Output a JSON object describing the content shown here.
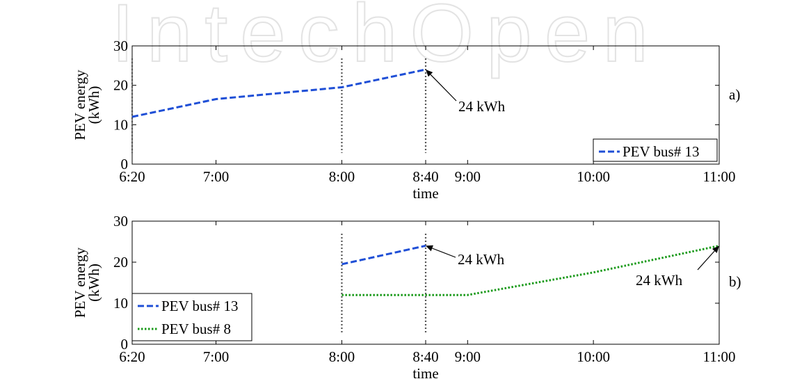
{
  "watermark": {
    "text": "IntechOpen",
    "color": "#e6e6e6"
  },
  "chart_data": [
    {
      "type": "line",
      "panel_label": "a)",
      "xlabel": "time",
      "ylabel": "PEV energy (kWh)",
      "ylabel_lines": [
        "PEV energy",
        "(kWh)"
      ],
      "ylim": [
        0,
        30
      ],
      "yticks": [
        0,
        10,
        20,
        30
      ],
      "xlim_minutes": [
        380,
        660
      ],
      "xticks": [
        {
          "label": "6:20",
          "minutes": 380
        },
        {
          "label": "7:00",
          "minutes": 420
        },
        {
          "label": "8:00",
          "minutes": 480
        },
        {
          "label": "8:40",
          "minutes": 520
        },
        {
          "label": "9:00",
          "minutes": 540
        },
        {
          "label": "10:00",
          "minutes": 600
        },
        {
          "label": "11:00",
          "minutes": 660
        }
      ],
      "grid": false,
      "legend_position": "bottom-right",
      "vlines_minutes": [
        380,
        480,
        520
      ],
      "series": [
        {
          "name": "PEV bus# 13",
          "style": "dashed",
          "color": "#1f4fd6",
          "x": [
            "6:20",
            "7:00",
            "8:00",
            "8:40"
          ],
          "x_minutes": [
            380,
            420,
            480,
            520
          ],
          "values": [
            12,
            16.5,
            19.5,
            24
          ]
        }
      ],
      "annotations": [
        {
          "text": "24 kWh",
          "x_minutes": 520,
          "y": 24
        }
      ]
    },
    {
      "type": "line",
      "panel_label": "b)",
      "xlabel": "time",
      "ylabel": "PEV energy (kWh)",
      "ylabel_lines": [
        "PEV energy",
        "(kWh)"
      ],
      "ylim": [
        0,
        30
      ],
      "yticks": [
        0,
        10,
        20,
        30
      ],
      "xlim_minutes": [
        380,
        660
      ],
      "xticks": [
        {
          "label": "6:20",
          "minutes": 380
        },
        {
          "label": "7:00",
          "minutes": 420
        },
        {
          "label": "8:00",
          "minutes": 480
        },
        {
          "label": "8:40",
          "minutes": 520
        },
        {
          "label": "9:00",
          "minutes": 540
        },
        {
          "label": "10:00",
          "minutes": 600
        },
        {
          "label": "11:00",
          "minutes": 660
        }
      ],
      "grid": false,
      "legend_position": "bottom-left",
      "vlines_minutes": [
        480,
        520
      ],
      "series": [
        {
          "name": "PEV bus# 13",
          "style": "dashed",
          "color": "#1f4fd6",
          "x": [
            "8:00",
            "8:40"
          ],
          "x_minutes": [
            480,
            520
          ],
          "values": [
            19.5,
            24
          ]
        },
        {
          "name": "PEV bus# 8",
          "style": "dotted",
          "color": "#1a9a1a",
          "x": [
            "8:00",
            "8:40",
            "9:00",
            "10:00",
            "11:00"
          ],
          "x_minutes": [
            480,
            520,
            540,
            600,
            660
          ],
          "values": [
            12,
            12,
            12,
            17.5,
            24
          ]
        }
      ],
      "annotations": [
        {
          "text": "24 kWh",
          "x_minutes": 520,
          "y": 24
        },
        {
          "text": "24 kWh",
          "x_minutes": 660,
          "y": 24
        }
      ]
    }
  ]
}
